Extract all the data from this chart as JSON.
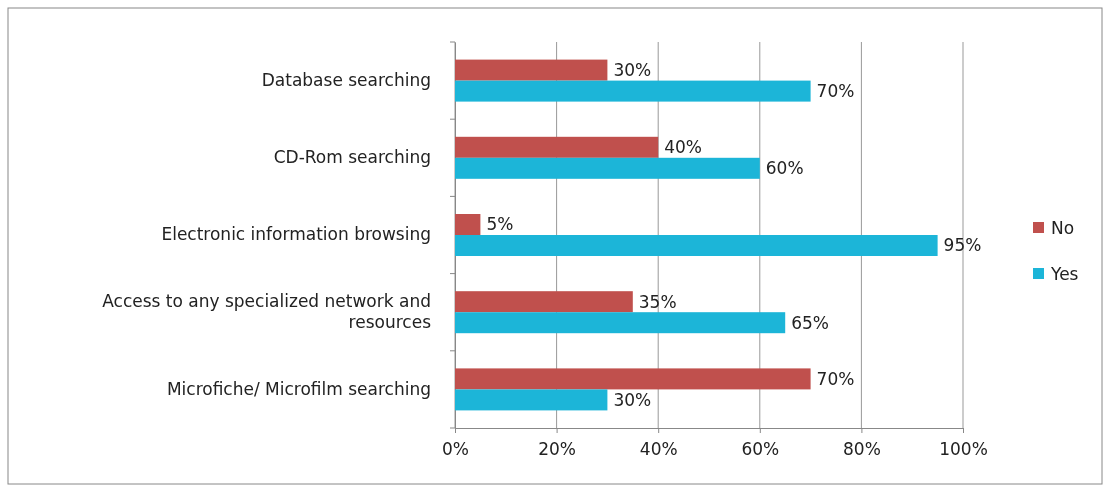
{
  "chart_data": {
    "type": "bar",
    "orientation": "horizontal",
    "categories": [
      "Database searching",
      "CD-Rom searching",
      "Electronic information browsing",
      "Access to any specialized network and resources",
      "Microfiche/ Microfilm searching"
    ],
    "series": [
      {
        "name": "No",
        "color": "#c0504d",
        "values": [
          30,
          40,
          5,
          35,
          70
        ],
        "value_labels": [
          "30%",
          "40%",
          "5%",
          "35%",
          "70%"
        ]
      },
      {
        "name": "Yes",
        "color": "#1cb5d8",
        "values": [
          70,
          60,
          95,
          65,
          30
        ],
        "value_labels": [
          "70%",
          "60%",
          "95%",
          "65%",
          "30%"
        ]
      }
    ],
    "xlim": [
      0,
      100
    ],
    "xticks": [
      {
        "value": 0,
        "label": "0%"
      },
      {
        "value": 20,
        "label": "20%"
      },
      {
        "value": 40,
        "label": "40%"
      },
      {
        "value": 60,
        "label": "60%"
      },
      {
        "value": 80,
        "label": "80%"
      },
      {
        "value": 100,
        "label": "100%"
      }
    ],
    "grid": "x",
    "legend": "right"
  }
}
